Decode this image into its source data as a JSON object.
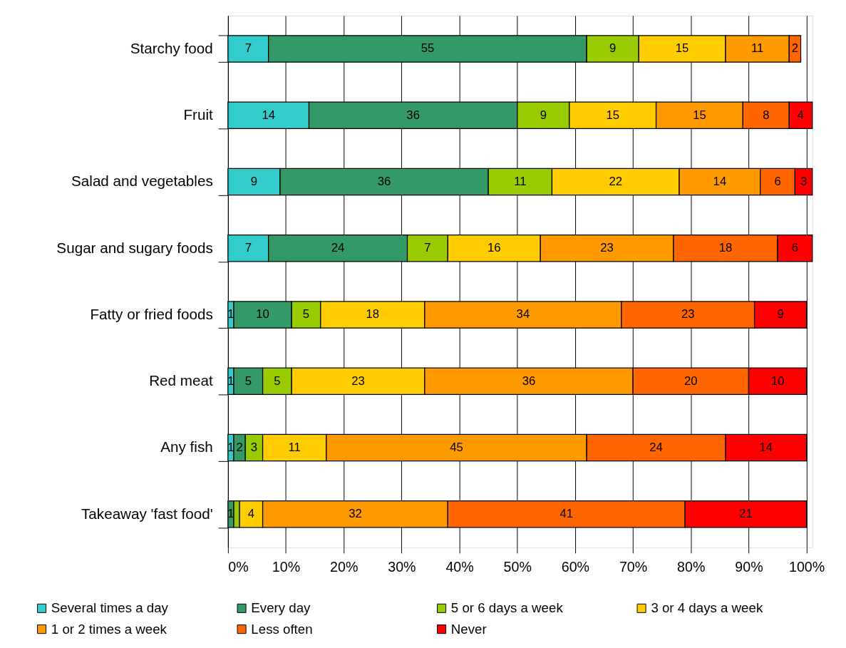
{
  "chart_data": {
    "type": "bar",
    "orientation": "horizontal",
    "stacked": true,
    "categories": [
      "Starchy food",
      "Fruit",
      "Salad and vegetables",
      "Sugar and sugary foods",
      "Fatty or fried foods",
      "Red meat",
      "Any fish",
      "Takeaway 'fast food'"
    ],
    "series": [
      {
        "name": "Several times a day",
        "color": "#33cccc",
        "values": [
          7,
          14,
          9,
          7,
          1,
          1,
          1,
          null
        ]
      },
      {
        "name": "Every day",
        "color": "#339966",
        "values": [
          55,
          36,
          36,
          24,
          10,
          5,
          2,
          1
        ]
      },
      {
        "name": "5 or 6 days a week",
        "color": "#99cc00",
        "values": [
          9,
          9,
          11,
          7,
          5,
          5,
          3,
          1
        ],
        "value_labels": [
          "9",
          "9",
          "11",
          "7",
          "5",
          "5",
          "3",
          null
        ]
      },
      {
        "name": "3 or 4 days a week",
        "color": "#ffcc00",
        "values": [
          15,
          15,
          22,
          16,
          18,
          23,
          11,
          4
        ]
      },
      {
        "name": "1 or 2 times a week",
        "color": "#ff9900",
        "values": [
          11,
          15,
          14,
          23,
          34,
          36,
          45,
          32
        ]
      },
      {
        "name": "Less often",
        "color": "#ff6600",
        "values": [
          2,
          8,
          6,
          18,
          23,
          20,
          24,
          41
        ]
      },
      {
        "name": "Never",
        "color": "#ff0000",
        "values": [
          null,
          4,
          3,
          6,
          9,
          10,
          14,
          21
        ]
      }
    ],
    "data_labels": true,
    "xlim": [
      0,
      101
    ],
    "xticks": [
      {
        "value": 0,
        "label": "0%"
      },
      {
        "value": 10,
        "label": "10%"
      },
      {
        "value": 20,
        "label": "20%"
      },
      {
        "value": 30,
        "label": "30%"
      },
      {
        "value": 40,
        "label": "40%"
      },
      {
        "value": 50,
        "label": "50%"
      },
      {
        "value": 60,
        "label": "60%"
      },
      {
        "value": 70,
        "label": "70%"
      },
      {
        "value": 80,
        "label": "80%"
      },
      {
        "value": 90,
        "label": "90%"
      },
      {
        "value": 100,
        "label": "100%"
      }
    ],
    "grid": "x",
    "legend": "bottom"
  }
}
